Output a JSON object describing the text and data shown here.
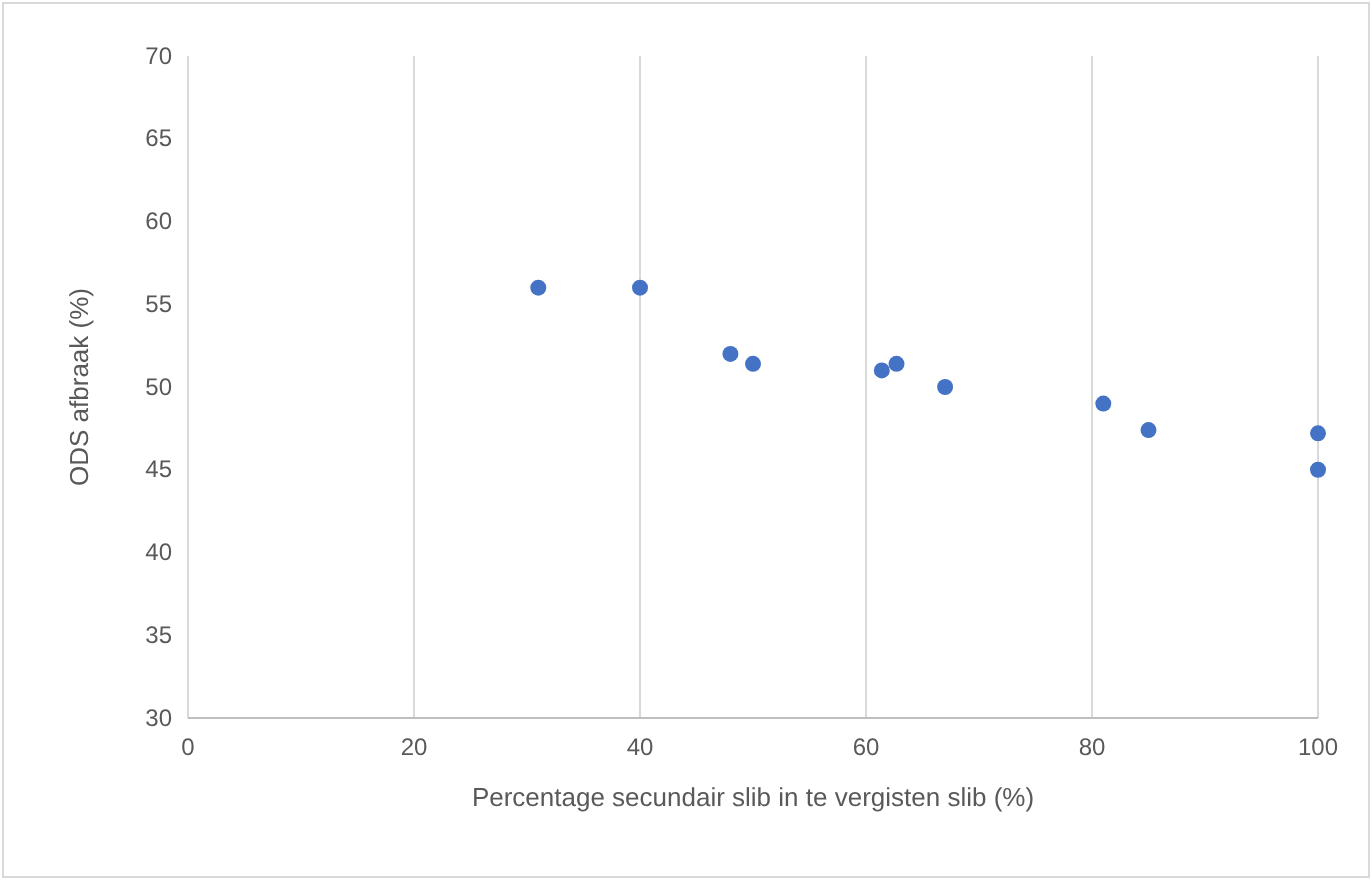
{
  "chart_data": {
    "type": "scatter",
    "xlabel": "Percentage secundair slib in te vergisten slib (%)",
    "ylabel": "ODS afbraak (%)",
    "x": [
      31,
      40,
      48,
      50,
      61.4,
      62.7,
      67,
      81,
      85,
      100,
      100
    ],
    "series": [
      {
        "color": "#4472c4",
        "values": [
          56,
          56,
          52,
          51.4,
          51,
          51.4,
          50,
          49,
          47.4,
          47.2,
          45
        ]
      }
    ],
    "xlim": [
      0,
      100
    ],
    "xticks": [
      0,
      20,
      40,
      60,
      80,
      100
    ],
    "ylim": [
      30,
      70
    ],
    "yticks": [
      30,
      35,
      40,
      45,
      50,
      55,
      60,
      65,
      70
    ],
    "grid": "x",
    "marker": "circle"
  }
}
